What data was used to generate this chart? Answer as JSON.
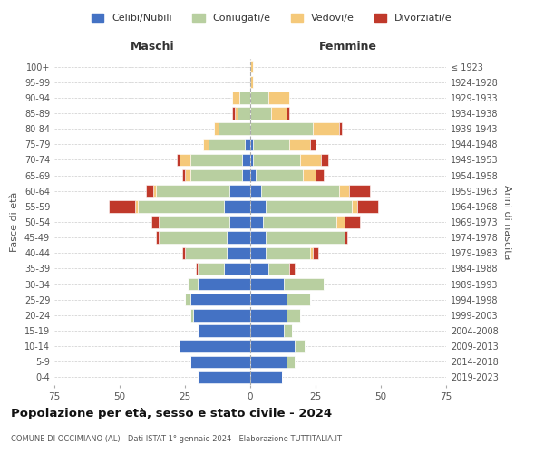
{
  "age_groups": [
    "0-4",
    "5-9",
    "10-14",
    "15-19",
    "20-24",
    "25-29",
    "30-34",
    "35-39",
    "40-44",
    "45-49",
    "50-54",
    "55-59",
    "60-64",
    "65-69",
    "70-74",
    "75-79",
    "80-84",
    "85-89",
    "90-94",
    "95-99",
    "100+"
  ],
  "birth_years": [
    "2019-2023",
    "2014-2018",
    "2009-2013",
    "2004-2008",
    "1999-2003",
    "1994-1998",
    "1989-1993",
    "1984-1988",
    "1979-1983",
    "1974-1978",
    "1969-1973",
    "1964-1968",
    "1959-1963",
    "1954-1958",
    "1949-1953",
    "1944-1948",
    "1939-1943",
    "1934-1938",
    "1929-1933",
    "1924-1928",
    "≤ 1923"
  ],
  "colors": {
    "celibe": "#4472c4",
    "coniugato": "#b8cfa0",
    "vedovo": "#f5c97a",
    "divorziato": "#c0392b"
  },
  "maschi": {
    "celibe": [
      20,
      23,
      27,
      20,
      22,
      23,
      20,
      10,
      9,
      9,
      8,
      10,
      8,
      3,
      3,
      2,
      0,
      0,
      0,
      0,
      0
    ],
    "coniugato": [
      0,
      0,
      0,
      0,
      1,
      2,
      4,
      10,
      16,
      26,
      27,
      33,
      28,
      20,
      20,
      14,
      12,
      5,
      4,
      0,
      0
    ],
    "vedovo": [
      0,
      0,
      0,
      0,
      0,
      0,
      0,
      0,
      0,
      0,
      0,
      1,
      1,
      2,
      4,
      2,
      2,
      1,
      3,
      0,
      0
    ],
    "divorziato": [
      0,
      0,
      0,
      0,
      0,
      0,
      0,
      1,
      1,
      1,
      3,
      10,
      3,
      1,
      1,
      0,
      0,
      1,
      0,
      0,
      0
    ]
  },
  "femmine": {
    "nubile": [
      12,
      14,
      17,
      13,
      14,
      14,
      13,
      7,
      6,
      6,
      5,
      6,
      4,
      2,
      1,
      1,
      0,
      0,
      0,
      0,
      0
    ],
    "coniugata": [
      0,
      3,
      4,
      3,
      5,
      9,
      15,
      8,
      17,
      30,
      28,
      33,
      30,
      18,
      18,
      14,
      24,
      8,
      7,
      0,
      0
    ],
    "vedova": [
      0,
      0,
      0,
      0,
      0,
      0,
      0,
      0,
      1,
      0,
      3,
      2,
      4,
      5,
      8,
      8,
      10,
      6,
      8,
      1,
      1
    ],
    "divorziata": [
      0,
      0,
      0,
      0,
      0,
      0,
      0,
      2,
      2,
      1,
      6,
      8,
      8,
      3,
      3,
      2,
      1,
      1,
      0,
      0,
      0
    ]
  },
  "xlim": 75,
  "title": "Popolazione per età, sesso e stato civile - 2024",
  "subtitle": "COMUNE DI OCCIMIANO (AL) - Dati ISTAT 1° gennaio 2024 - Elaborazione TUTTITALIA.IT",
  "ylabel_left": "Fasce di età",
  "ylabel_right": "Anni di nascita",
  "xlabel_left": "Maschi",
  "xlabel_right": "Femmine",
  "legend_labels": [
    "Celibi/Nubili",
    "Coniugati/e",
    "Vedovi/e",
    "Divorziati/e"
  ],
  "background_color": "#ffffff",
  "grid_color": "#cccccc"
}
